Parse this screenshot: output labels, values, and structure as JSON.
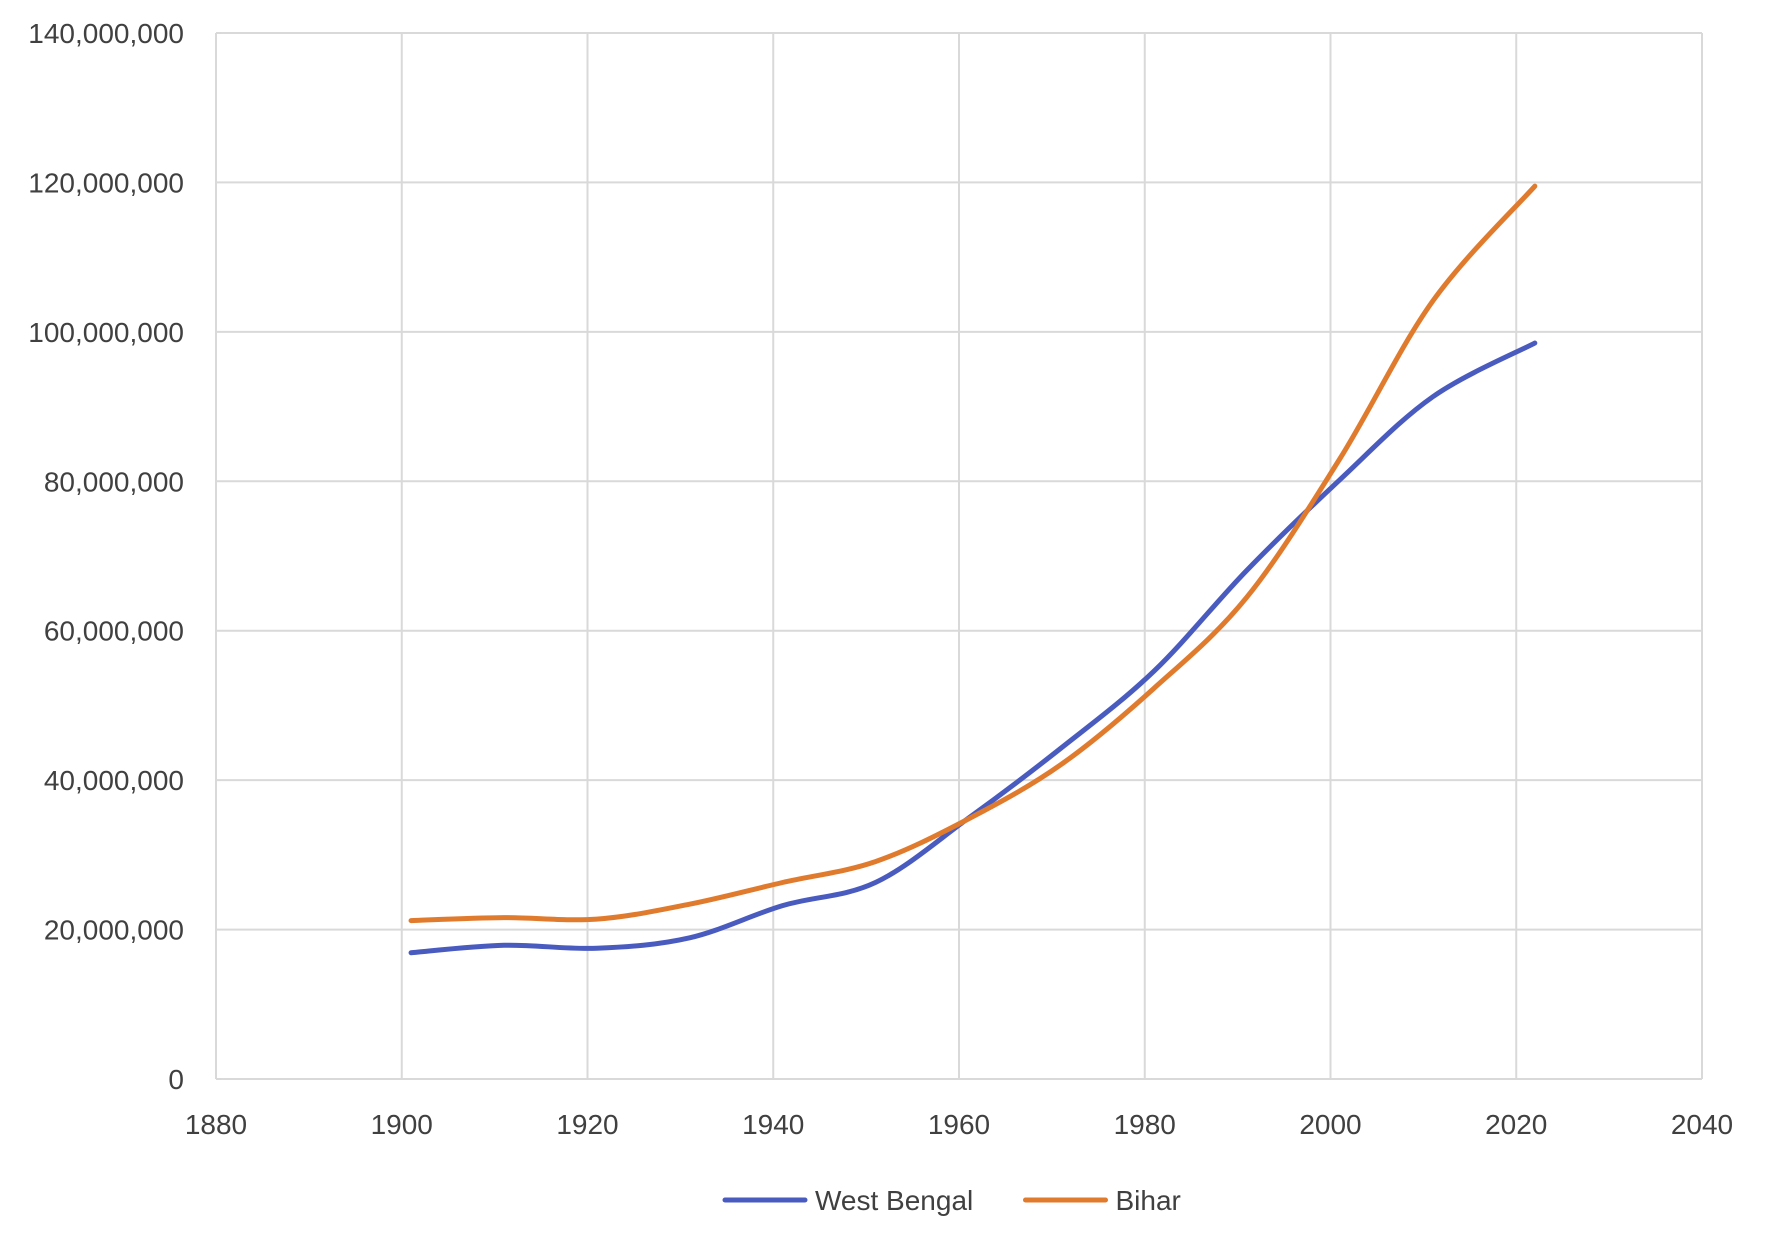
{
  "chart_data": {
    "type": "line",
    "title": "",
    "xlabel": "",
    "ylabel": "",
    "xlim": [
      1880,
      2040
    ],
    "ylim": [
      0,
      140000000
    ],
    "x_ticks": [
      1880,
      1900,
      1920,
      1940,
      1960,
      1980,
      2000,
      2020,
      2040
    ],
    "y_ticks": [
      0,
      20000000,
      40000000,
      60000000,
      80000000,
      100000000,
      120000000,
      140000000
    ],
    "x_tick_labels": [
      "1880",
      "1900",
      "1920",
      "1940",
      "1960",
      "1980",
      "2000",
      "2020",
      "2040"
    ],
    "y_tick_labels": [
      "0",
      "20,000,000",
      "40,000,000",
      "60,000,000",
      "80,000,000",
      "100,000,000",
      "120,000,000",
      "140,000,000"
    ],
    "grid": true,
    "legend_position": "bottom",
    "series": [
      {
        "name": "West Bengal",
        "color": "#4A5BC0",
        "x": [
          1901,
          1911,
          1921,
          1931,
          1941,
          1951,
          1961,
          1971,
          1981,
          1991,
          2001,
          2011,
          2022
        ],
        "values": [
          16900000,
          17900000,
          17500000,
          18900000,
          23200000,
          26300000,
          34900000,
          44300000,
          54600000,
          68100000,
          80200000,
          91300000,
          98500000
        ]
      },
      {
        "name": "Bihar",
        "color": "#E07B2E",
        "x": [
          1901,
          1911,
          1921,
          1931,
          1941,
          1951,
          1961,
          1971,
          1981,
          1991,
          2001,
          2011,
          2022
        ],
        "values": [
          21200000,
          21600000,
          21400000,
          23400000,
          26300000,
          29100000,
          34800000,
          42100000,
          52300000,
          64500000,
          83000000,
          104100000,
          119500000
        ]
      }
    ]
  }
}
